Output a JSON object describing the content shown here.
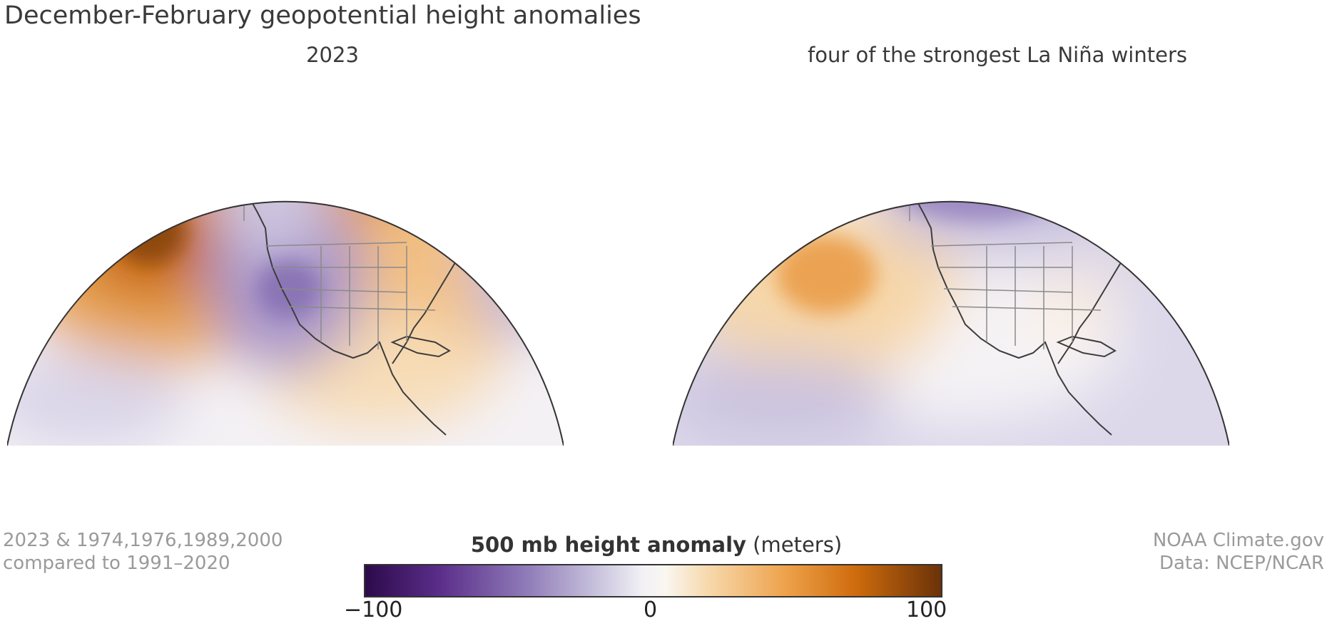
{
  "title": "December-February geopotential height anomalies",
  "maps": [
    {
      "title": "2023"
    },
    {
      "title": "four of the strongest La Niña winters"
    }
  ],
  "notes": {
    "left_line1": "2023 & 1974,1976,1989,2000",
    "left_line2": "compared to 1991–2020",
    "right_line1": "NOAA Climate.gov",
    "right_line2": "Data: NCEP/NCAR"
  },
  "legend": {
    "title_bold": "500 mb height anomaly",
    "title_units": " (meters)",
    "min_label": "−100",
    "mid_label": "0",
    "max_label": "100",
    "colors": {
      "negative_extreme": "#2c0a4b",
      "negative": "#8f7bb8",
      "neutral": "#f4f3f6",
      "positive": "#eea24b",
      "positive_extreme": "#6b3208"
    }
  }
}
